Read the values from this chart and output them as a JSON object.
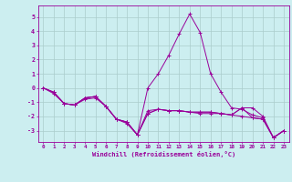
{
  "xlabel": "Windchill (Refroidissement éolien,°C)",
  "ylabel": "",
  "bg_color": "#cceef0",
  "line_color": "#990099",
  "grid_color": "#aacccc",
  "xlim": [
    -0.5,
    23.5
  ],
  "ylim": [
    -3.8,
    5.8
  ],
  "xticks": [
    0,
    1,
    2,
    3,
    4,
    5,
    6,
    7,
    8,
    9,
    10,
    11,
    12,
    13,
    14,
    15,
    16,
    17,
    18,
    19,
    20,
    21,
    22,
    23
  ],
  "yticks": [
    -3,
    -2,
    -1,
    0,
    1,
    2,
    3,
    4,
    5
  ],
  "series": [
    [
      0.0,
      -0.3,
      -1.1,
      -1.2,
      -0.7,
      -0.6,
      -1.3,
      -2.2,
      -2.4,
      -3.3,
      -1.8,
      -1.5,
      -1.6,
      -1.6,
      -1.7,
      -1.7,
      -1.7,
      -1.8,
      -1.9,
      -2.0,
      -2.1,
      -2.2,
      -3.5,
      -3.0
    ],
    [
      0.0,
      -0.3,
      -1.1,
      -1.2,
      -0.7,
      -0.6,
      -1.3,
      -2.2,
      -2.4,
      -3.3,
      0.0,
      1.0,
      2.3,
      3.8,
      5.2,
      3.9,
      1.0,
      -0.3,
      -1.4,
      -1.5,
      -1.9,
      -2.1,
      -3.5,
      -3.0
    ],
    [
      0.0,
      -0.4,
      -1.1,
      -1.2,
      -0.8,
      -0.7,
      -1.3,
      -2.2,
      -2.5,
      -3.3,
      -1.6,
      -1.5,
      -1.6,
      -1.6,
      -1.7,
      -1.8,
      -1.8,
      -1.8,
      -1.9,
      -1.4,
      -1.4,
      -2.0,
      -3.5,
      -3.0
    ],
    [
      0.0,
      -0.3,
      -1.1,
      -1.2,
      -0.7,
      -0.6,
      -1.3,
      -2.2,
      -2.4,
      -3.3,
      -1.8,
      -1.5,
      -1.6,
      -1.6,
      -1.7,
      -1.7,
      -1.7,
      -1.8,
      -1.9,
      -1.4,
      -2.1,
      -2.2,
      -3.5,
      -3.0
    ]
  ]
}
